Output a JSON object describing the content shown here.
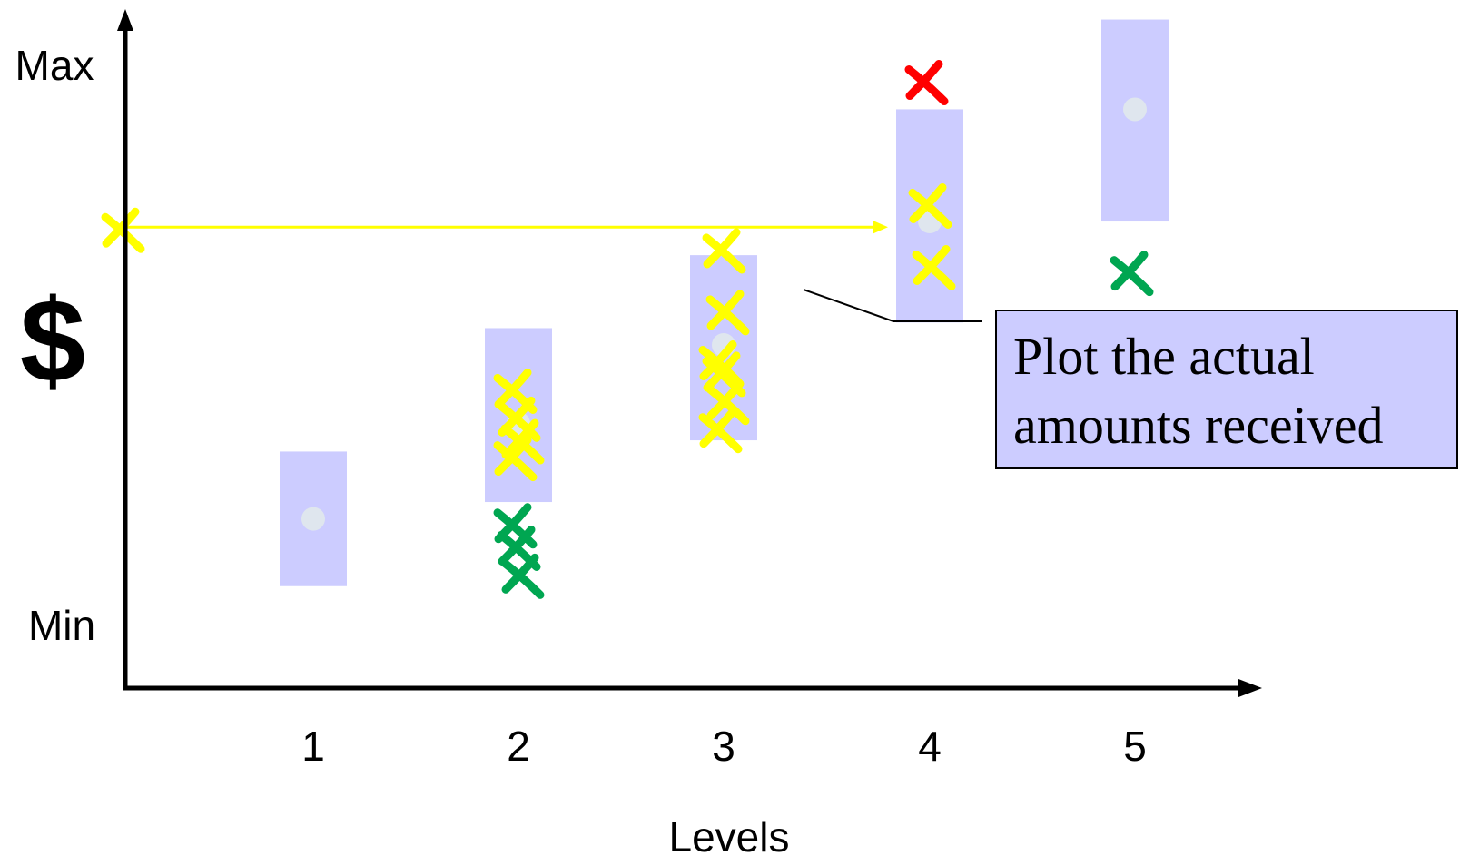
{
  "chart_data": {
    "type": "scatter",
    "categories": [
      "1",
      "2",
      "3",
      "4",
      "5"
    ],
    "xlabel": "Levels",
    "ylabel": "$",
    "y_top_label": "Max",
    "y_bottom_label": "Min",
    "ylim": [
      0,
      100
    ],
    "range_bands": [
      {
        "level": "1",
        "low": 7,
        "high": 31,
        "mid": 19
      },
      {
        "level": "2",
        "low": 22,
        "high": 53,
        "mid": 36
      },
      {
        "level": "3",
        "low": 33,
        "high": 66,
        "mid": 50
      },
      {
        "level": "4",
        "low": 54,
        "high": 92,
        "mid": 72
      },
      {
        "level": "5",
        "low": 72,
        "high": 108,
        "mid": 92
      }
    ],
    "series": [
      {
        "color": "#ffff00",
        "points": [
          {
            "level": "2",
            "y": 42
          },
          {
            "level": "2",
            "y": 37
          },
          {
            "level": "2",
            "y": 33
          },
          {
            "level": "2",
            "y": 30
          },
          {
            "level": "3",
            "y": 67
          },
          {
            "level": "3",
            "y": 56
          },
          {
            "level": "3",
            "y": 47
          },
          {
            "level": "3",
            "y": 45
          },
          {
            "level": "3",
            "y": 40
          },
          {
            "level": "3",
            "y": 35
          },
          {
            "level": "4",
            "y": 75
          },
          {
            "level": "4",
            "y": 64
          }
        ]
      },
      {
        "color": "#00a651",
        "points": [
          {
            "level": "2",
            "y": 18
          },
          {
            "level": "2",
            "y": 14
          },
          {
            "level": "2",
            "y": 9
          },
          {
            "level": "5",
            "y": 63
          }
        ]
      },
      {
        "color": "#ff0000",
        "points": [
          {
            "level": "4",
            "y": 97
          }
        ]
      }
    ],
    "reference_marker": {
      "y": 71,
      "color": "#ffff00",
      "arrow_to_level": "4"
    },
    "annotations": [
      {
        "text_lines": [
          "Plot the actual",
          "amounts received"
        ],
        "box_fill": "#ccccff",
        "border": "#000000"
      }
    ],
    "band_color": "#ccccff",
    "midpoint_color": "#dfe6ee",
    "grid": false,
    "legend": "none"
  }
}
